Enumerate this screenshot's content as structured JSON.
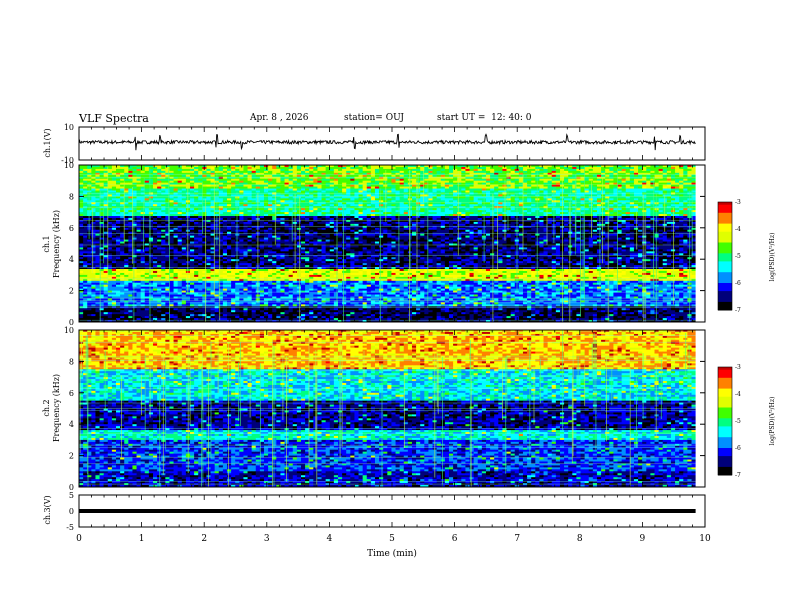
{
  "header": {
    "title": "VLF Spectra",
    "date": "Apr. 8 , 2026",
    "station": "station= OUJ",
    "start_ut": "start UT =  12: 40: 0"
  },
  "chart_data": [
    {
      "type": "line",
      "panel": "ch1-waveform",
      "ylabel": "ch.1(V)",
      "ylim": [
        -10,
        10
      ],
      "yticks": [
        "10",
        "-10"
      ],
      "xlim": [
        0,
        10
      ],
      "description_values": {
        "baseline_v": 0.8,
        "noise_amplitude_v": 1.0,
        "spike_times_min": [
          0.9,
          1.3,
          2.2,
          2.6,
          4.4,
          5.1,
          6.5,
          7.8,
          9.2,
          9.6
        ]
      }
    },
    {
      "type": "heatmap",
      "panel": "ch1-spectrogram",
      "ylabel": "ch.1\nFrequency (kHz)",
      "ylim": [
        0,
        10
      ],
      "yticks": [
        "0",
        "2",
        "4",
        "6",
        "8",
        "10"
      ],
      "xlim": [
        0,
        9.85
      ],
      "colorbar": {
        "label": "log(PSD)(V²/Hz)",
        "range": [
          -7,
          -3
        ],
        "ticks": [
          "-3",
          "-4",
          "-5",
          "-6",
          "-7"
        ]
      },
      "bands": [
        {
          "f_khz": [
            0,
            1.0
          ],
          "level": -6.6
        },
        {
          "f_khz": [
            1.0,
            2.6
          ],
          "level": -5.8
        },
        {
          "f_khz": [
            2.6,
            3.4
          ],
          "level": -4.2
        },
        {
          "f_khz": [
            3.4,
            6.8
          ],
          "level": -6.5
        },
        {
          "f_khz": [
            6.8,
            8.5
          ],
          "level": -5.1
        },
        {
          "f_khz": [
            8.5,
            10
          ],
          "level": -4.6
        }
      ]
    },
    {
      "type": "heatmap",
      "panel": "ch2-spectrogram",
      "ylabel": "ch.2\nFrequency (kHz)",
      "ylim": [
        0,
        10
      ],
      "yticks": [
        "0",
        "2",
        "4",
        "6",
        "8",
        "10"
      ],
      "xlim": [
        0,
        9.85
      ],
      "colorbar": {
        "label": "log(PSD)(V²/Hz)",
        "range": [
          -7,
          -3
        ],
        "ticks": [
          "-3",
          "-4",
          "-5",
          "-6",
          "-7"
        ]
      },
      "bands": [
        {
          "f_khz": [
            0,
            1.0
          ],
          "level": -6.3
        },
        {
          "f_khz": [
            1.0,
            3.0
          ],
          "level": -6.0
        },
        {
          "f_khz": [
            3.0,
            3.6
          ],
          "level": -5.3
        },
        {
          "f_khz": [
            3.6,
            5.5
          ],
          "level": -6.4
        },
        {
          "f_khz": [
            5.5,
            7.5
          ],
          "level": -5.4
        },
        {
          "f_khz": [
            7.5,
            10
          ],
          "level": -3.8
        }
      ]
    },
    {
      "type": "line",
      "panel": "ch3-waveform",
      "ylabel": "ch.3(V)",
      "ylim": [
        -5,
        5
      ],
      "yticks": [
        "5",
        "0",
        "-5"
      ],
      "xlim": [
        0,
        9.85
      ],
      "description_values": {
        "constant_v": 0
      }
    }
  ],
  "xaxis": {
    "label": "Time (min)",
    "ticks": [
      "0",
      "1",
      "2",
      "3",
      "4",
      "5",
      "6",
      "7",
      "8",
      "9",
      "10"
    ]
  },
  "colors": {
    "cmap": [
      "#000000",
      "#00007a",
      "#0000ff",
      "#0090ff",
      "#00ffff",
      "#00ff80",
      "#40ff00",
      "#e0ff00",
      "#ffff00",
      "#ff8000",
      "#ff0000",
      "#c00000"
    ]
  }
}
